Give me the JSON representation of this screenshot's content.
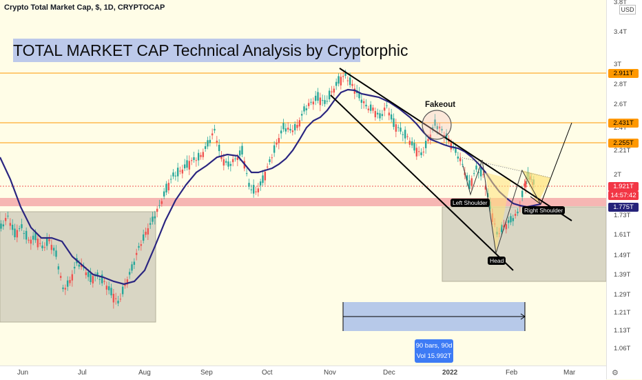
{
  "symbol_title": "Crypto Total Market Cap, $, 1D, CRYPTOCAP",
  "headline": "TOTAL MARKET CAP Technical Analysis by Cryptorphic",
  "currency": "USD",
  "price_ticks": [
    "3.8T",
    "3.4T",
    "3T",
    "2.8T",
    "2.6T",
    "2.4T",
    "2.21T",
    "2T",
    "1.73T",
    "1.61T",
    "1.49T",
    "1.39T",
    "1.29T",
    "1.21T",
    "1.13T",
    "1.06T"
  ],
  "price_badges": {
    "level_top": "2.911T",
    "level_mid": "2.431T",
    "level_low": "2.255T",
    "last_price": "1.921T",
    "countdown": "14:57:42",
    "ma_value": "1.775T"
  },
  "time_ticks": [
    "Jun",
    "Jul",
    "Aug",
    "Sep",
    "Oct",
    "Nov",
    "Dec",
    "2022",
    "Feb",
    "Mar"
  ],
  "annotations": {
    "fakeout": "Fakeout",
    "left_shoulder": "Left Shoulder",
    "head": "Head",
    "right_shoulder": "Right Shoulder"
  },
  "measure": {
    "bars": "90 bars, 90d",
    "volume": "Vol 15.992T"
  },
  "colors": {
    "up": "#26a69a",
    "down": "#ef5350",
    "ma": "#2a2580",
    "level": "#ff9800",
    "support_zone": "#f5a9a9"
  }
}
